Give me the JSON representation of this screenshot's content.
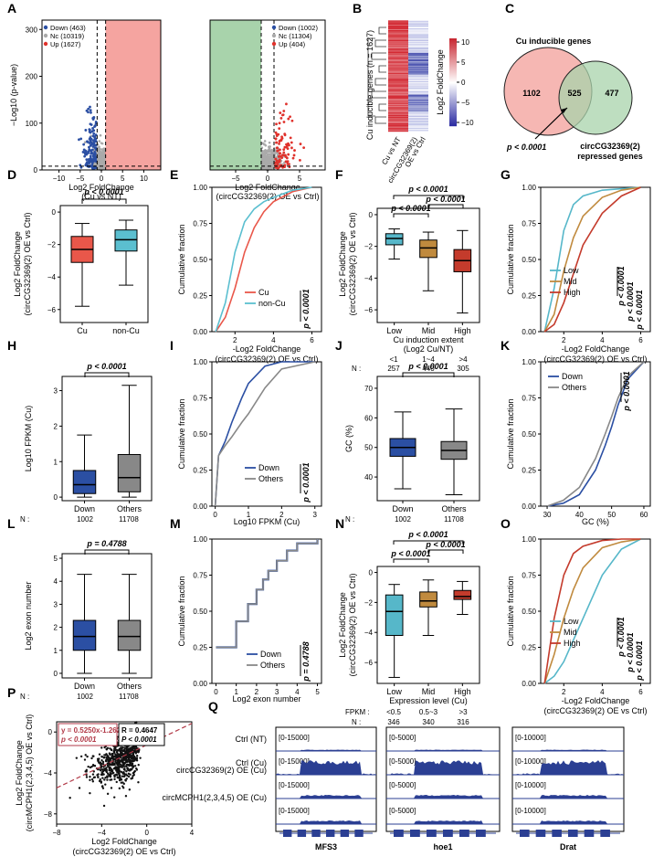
{
  "colors": {
    "up": "#e0322c",
    "down": "#2b4fa3",
    "nc": "#aaaaaa",
    "cu": "#e9574a",
    "noncu": "#5bbfd0",
    "low": "#56b7c9",
    "mid": "#c08a3e",
    "high": "#c43b2c",
    "others": "#888888",
    "pink": "#f5a4a0",
    "green": "#a8d3ab"
  },
  "panel_letters": [
    "A",
    "B",
    "C",
    "D",
    "E",
    "F",
    "G",
    "H",
    "I",
    "J",
    "K",
    "L",
    "M",
    "N",
    "O",
    "P",
    "Q"
  ],
  "A": {
    "ylabel": "−Log10 (p-value)",
    "left": {
      "legend": [
        "Down (463)",
        "Nc (10319)",
        "Up (1627)"
      ],
      "xlabel": [
        "Log2 FoldChange",
        "(Cu vs NT)"
      ],
      "xticks": [
        "−10",
        "−5",
        "0",
        "5",
        "10"
      ],
      "yticks": [
        "0",
        "100",
        "200",
        "300"
      ]
    },
    "right": {
      "legend": [
        "Down (1002)",
        "Nc (11304)",
        "Up (404)"
      ],
      "xlabel": [
        "Log2 FoldChange",
        "(circCG32369(2) OE vs Ctrl)"
      ],
      "xticks": [
        "−5",
        "0",
        "5"
      ]
    }
  },
  "B": {
    "ylabel": "Cu inducible genes (n = 1627)",
    "cols": [
      "Cu vs NT",
      "circCG32369(2)",
      "OE vs Ctrl"
    ],
    "cbar_label": "Log2 FoldChange",
    "cbar_ticks": [
      "10",
      "5",
      "0",
      "−5",
      "−10"
    ]
  },
  "C": {
    "title": "Cu inducible genes",
    "left": "1102",
    "mid": "525",
    "right": "477",
    "label2": [
      "circCG32369(2)",
      "repressed genes"
    ],
    "p": "p < 0.0001"
  },
  "D": {
    "ylabel": [
      "Log2 FoldChange",
      "(circCG32369(2) OE vs Ctrl)"
    ],
    "p": "p < 0.0001",
    "cats": [
      "Cu",
      "non-Cu"
    ],
    "yticks": [
      "0",
      "−2",
      "−4",
      "−6"
    ]
  },
  "E": {
    "ylabel": "Cumulative fraction",
    "legend": [
      "Cu",
      "non-Cu"
    ],
    "p": "p < 0.0001",
    "xlabel": [
      "-Log2 FoldChange",
      "(circCG32369(2) OE vs Ctrl)"
    ],
    "xticks": [
      "2",
      "4",
      "6"
    ],
    "yticks": [
      "0.00",
      "0.25",
      "0.50",
      "0.75",
      "1.00"
    ]
  },
  "F": {
    "ylabel": [
      "Log2 FoldChange",
      "(circCG32369(2) OE vs Ctrl)"
    ],
    "p": [
      "p < 0.0001",
      "p < 0.0001",
      "p < 0.0001"
    ],
    "cats": [
      "Low",
      "Mid",
      "High"
    ],
    "xlabel": [
      "Cu induction extent",
      "(Log2 Cu/NT)"
    ],
    "ranges": [
      "<1",
      "1~4",
      ">4"
    ],
    "n_label": "N :",
    "n": [
      "257",
      "440",
      "305"
    ],
    "yticks": [
      "0",
      "−2",
      "−4",
      "−6"
    ]
  },
  "G": {
    "ylabel": "Cumulative fraction",
    "legend": [
      "Low",
      "Mid",
      "High"
    ],
    "p": [
      "p < 0.0001",
      "p < 0.0001",
      "p < 0.0001"
    ],
    "xlabel": [
      "-Log2 FoldChange",
      "(circCG32369(2) OE vs Ctrl)"
    ],
    "xticks": [
      "2",
      "4",
      "6"
    ],
    "yticks": [
      "0.00",
      "0.25",
      "0.50",
      "0.75",
      "1.00"
    ]
  },
  "H": {
    "ylabel": "Log10 FPKM (Cu)",
    "p": "p < 0.0001",
    "cats": [
      "Down",
      "Others"
    ],
    "n_label": "N :",
    "n": [
      "1002",
      "11708"
    ],
    "yticks": [
      "0",
      "1",
      "2",
      "3"
    ]
  },
  "I": {
    "ylabel": "Cumulative fraction",
    "legend": [
      "Down",
      "Others"
    ],
    "p": "p < 0.0001",
    "xlabel": "Log10 FPKM (Cu)",
    "xticks": [
      "0",
      "1",
      "2",
      "3"
    ],
    "yticks": [
      "0.00",
      "0.25",
      "0.50",
      "0.75",
      "1.00"
    ]
  },
  "J": {
    "ylabel": "GC (%)",
    "p": "p < 0.0001",
    "cats": [
      "Down",
      "Others"
    ],
    "n_label": "N :",
    "n": [
      "1002",
      "11708"
    ],
    "yticks": [
      "40",
      "50",
      "60",
      "70"
    ]
  },
  "K": {
    "ylabel": "Cumulative fraction",
    "legend": [
      "Down",
      "Others"
    ],
    "p": "p < 0.0001",
    "xlabel": "GC (%)",
    "xticks": [
      "30",
      "40",
      "50",
      "60"
    ],
    "yticks": [
      "0.00",
      "0.25",
      "0.50",
      "0.75",
      "1.00"
    ]
  },
  "L": {
    "ylabel": "Log2 exon number",
    "p": "p = 0.4788",
    "cats": [
      "Down",
      "Others"
    ],
    "n_label": "N :",
    "n": [
      "1002",
      "11708"
    ],
    "yticks": [
      "0",
      "1",
      "2",
      "3",
      "4",
      "5"
    ]
  },
  "M": {
    "ylabel": "Cumulative fraction",
    "legend": [
      "Down",
      "Others"
    ],
    "p": "p = 0.4788",
    "xlabel": "Log2 exon number",
    "xticks": [
      "0",
      "1",
      "2",
      "3",
      "4",
      "5"
    ],
    "yticks": [
      "0.00",
      "0.25",
      "0.50",
      "0.75",
      "1.00"
    ]
  },
  "N": {
    "ylabel": [
      "Log2 FoldChange",
      "(circCG32369(2) OE vs Ctrl)"
    ],
    "p": [
      "p < 0.0001",
      "p < 0.0001",
      "p < 0.0001"
    ],
    "cats": [
      "Low",
      "Mid",
      "High"
    ],
    "xlabel": "Expression level (Cu)",
    "fpkm_label": "FPKM :",
    "ranges": [
      "<0.5",
      "0.5~3",
      ">3"
    ],
    "n_label": "N :",
    "n": [
      "346",
      "340",
      "316"
    ],
    "yticks": [
      "0",
      "−2",
      "−4",
      "−6"
    ]
  },
  "O": {
    "ylabel": "Cumulative fraction",
    "legend": [
      "Low",
      "Mid",
      "High"
    ],
    "p": [
      "p < 0.0001",
      "p < 0.0001",
      "p < 0.0001"
    ],
    "xlabel": [
      "-Log2 FoldChange",
      "(circCG32369(2) OE vs Ctrl)"
    ],
    "xticks": [
      "2",
      "4",
      "6"
    ],
    "yticks": [
      "0.00",
      "0.25",
      "0.50",
      "0.75",
      "1.00"
    ]
  },
  "P": {
    "ylabel": [
      "Log2 FoldChange",
      "(circMCPH1(2,3,4,5) OE vs Ctrl)"
    ],
    "eq": "y = 0.5250x-1.262",
    "eqp": "p < 0.0001",
    "r": "R = 0.4647",
    "rp": "P < 0.0001",
    "xlabel": [
      "Log2 FoldChange",
      "(circCG32369(2) OE vs Ctrl)"
    ],
    "xticks": [
      "−8",
      "−4",
      "0",
      "4"
    ],
    "yticks": [
      "0",
      "−4",
      "−8"
    ]
  },
  "Q": {
    "tracks": [
      "Ctrl (NT)",
      "Ctrl (Cu)",
      "circCG32369(2) OE (Cu)",
      "circMCPH1(2,3,4,5) OE (Cu)"
    ],
    "genes": [
      {
        "name": "MFS3",
        "range": "[0-15000]"
      },
      {
        "name": "hoe1",
        "range": "[0-5000]"
      },
      {
        "name": "Drat",
        "range": "[0-10000]"
      }
    ]
  },
  "chart_data": [
    {
      "type": "scatter",
      "panel": "A-left",
      "title": "",
      "xlabel": "Log2 FoldChange (Cu vs NT)",
      "ylabel": "−Log10 (p-value)",
      "xlim": [
        -14,
        14
      ],
      "ylim": [
        0,
        320
      ],
      "series": [
        {
          "name": "Down (463)"
        },
        {
          "name": "Nc (10319)"
        },
        {
          "name": "Up (1627)"
        }
      ]
    },
    {
      "type": "scatter",
      "panel": "A-right",
      "xlabel": "Log2 FoldChange (circCG32369(2) OE vs Ctrl)",
      "xlim": [
        -9,
        9
      ],
      "ylim": [
        0,
        320
      ],
      "series": [
        {
          "name": "Down (1002)"
        },
        {
          "name": "Nc (11304)"
        },
        {
          "name": "Up (404)"
        }
      ]
    },
    {
      "type": "heatmap",
      "panel": "B",
      "rows": 1627,
      "columns": [
        "Cu vs NT",
        "circCG32369(2) OE vs Ctrl"
      ],
      "color_range": [
        -10,
        10
      ]
    },
    {
      "type": "venn",
      "panel": "C",
      "sets": [
        "Cu inducible genes",
        "circCG32369(2) repressed genes"
      ],
      "values": {
        "only_a": 1102,
        "both": 525,
        "only_b": 477
      }
    },
    {
      "type": "box",
      "panel": "D",
      "categories": [
        "Cu",
        "non-Cu"
      ],
      "median": [
        -2.3,
        -1.7
      ],
      "q1": [
        -3.1,
        -2.4
      ],
      "q3": [
        -1.5,
        -1.1
      ],
      "whisker_low": [
        -5.8,
        -4.5
      ],
      "whisker_high": [
        -0.7,
        -0.5
      ]
    },
    {
      "type": "line",
      "panel": "E",
      "xlim": [
        0.8,
        6.5
      ],
      "ylim": [
        0,
        1
      ],
      "series": [
        {
          "name": "Cu",
          "x": [
            1,
            1.5,
            2,
            2.5,
            3,
            3.5,
            4,
            5,
            6
          ],
          "y": [
            0,
            0.1,
            0.3,
            0.55,
            0.72,
            0.83,
            0.9,
            0.97,
            1
          ]
        },
        {
          "name": "non-Cu",
          "x": [
            1,
            1.5,
            2,
            2.5,
            3,
            3.5,
            4,
            5,
            6
          ],
          "y": [
            0,
            0.2,
            0.55,
            0.76,
            0.85,
            0.9,
            0.93,
            0.98,
            1
          ]
        }
      ]
    },
    {
      "type": "box",
      "panel": "F",
      "categories": [
        "Low",
        "Mid",
        "High"
      ],
      "median": [
        -1.5,
        -2.1,
        -2.9
      ],
      "q1": [
        -1.9,
        -2.7,
        -3.6
      ],
      "q3": [
        -1.2,
        -1.6,
        -2.2
      ],
      "whisker_low": [
        -2.8,
        -4.8,
        -6.2
      ],
      "whisker_high": [
        -0.9,
        -1.1,
        -1.0
      ]
    },
    {
      "type": "line",
      "panel": "G",
      "xlim": [
        0.8,
        6.5
      ],
      "ylim": [
        0,
        1
      ],
      "series": [
        {
          "name": "Low",
          "x": [
            1,
            1.5,
            2,
            2.5,
            3,
            4,
            5,
            6
          ],
          "y": [
            0,
            0.3,
            0.7,
            0.88,
            0.94,
            0.98,
            0.99,
            1
          ]
        },
        {
          "name": "Mid",
          "x": [
            1,
            1.5,
            2,
            2.5,
            3,
            4,
            5,
            6
          ],
          "y": [
            0,
            0.12,
            0.42,
            0.65,
            0.8,
            0.93,
            0.98,
            1
          ]
        },
        {
          "name": "High",
          "x": [
            1,
            1.5,
            2,
            2.5,
            3,
            4,
            5,
            6
          ],
          "y": [
            0,
            0.05,
            0.2,
            0.4,
            0.6,
            0.82,
            0.94,
            1
          ]
        }
      ]
    },
    {
      "type": "box",
      "panel": "H",
      "categories": [
        "Down",
        "Others"
      ],
      "median": [
        0.35,
        0.55
      ],
      "q1": [
        0.1,
        0.15
      ],
      "q3": [
        0.75,
        1.2
      ],
      "whisker_low": [
        0,
        0
      ],
      "whisker_high": [
        1.75,
        3.15
      ]
    },
    {
      "type": "line",
      "panel": "I",
      "xlim": [
        -0.1,
        3.2
      ],
      "ylim": [
        0,
        1
      ],
      "series": [
        {
          "name": "Down",
          "x": [
            0,
            0.1,
            0.3,
            0.5,
            0.8,
            1,
            1.5,
            2,
            3
          ],
          "y": [
            0,
            0.35,
            0.45,
            0.58,
            0.75,
            0.85,
            0.97,
            1,
            1
          ]
        },
        {
          "name": "Others",
          "x": [
            0,
            0.1,
            0.3,
            0.5,
            0.8,
            1,
            1.5,
            2,
            3
          ],
          "y": [
            0,
            0.35,
            0.42,
            0.48,
            0.58,
            0.64,
            0.82,
            0.95,
            1
          ]
        }
      ]
    },
    {
      "type": "box",
      "panel": "J",
      "categories": [
        "Down",
        "Others"
      ],
      "median": [
        50,
        49
      ],
      "q1": [
        47,
        46
      ],
      "q3": [
        53,
        52
      ],
      "whisker_low": [
        36,
        34
      ],
      "whisker_high": [
        62,
        63
      ]
    },
    {
      "type": "line",
      "panel": "K",
      "xlim": [
        28,
        62
      ],
      "ylim": [
        0,
        1
      ],
      "series": [
        {
          "name": "Down",
          "x": [
            30,
            35,
            40,
            45,
            48,
            50,
            52,
            55,
            60
          ],
          "y": [
            0,
            0.02,
            0.08,
            0.25,
            0.42,
            0.55,
            0.7,
            0.88,
            1
          ]
        },
        {
          "name": "Others",
          "x": [
            30,
            35,
            40,
            45,
            48,
            50,
            52,
            55,
            60
          ],
          "y": [
            0,
            0.04,
            0.13,
            0.33,
            0.5,
            0.62,
            0.75,
            0.9,
            1
          ]
        }
      ]
    },
    {
      "type": "box",
      "panel": "L",
      "categories": [
        "Down",
        "Others"
      ],
      "median": [
        1.6,
        1.6
      ],
      "q1": [
        1.0,
        1.0
      ],
      "q3": [
        2.3,
        2.3
      ],
      "whisker_low": [
        0,
        0
      ],
      "whisker_high": [
        4.3,
        4.3
      ]
    },
    {
      "type": "line",
      "panel": "M",
      "xlim": [
        -0.2,
        5.2
      ],
      "ylim": [
        0,
        1
      ],
      "series": [
        {
          "name": "Down",
          "x": [
            0,
            1,
            1.58,
            2,
            2.32,
            2.58,
            3,
            3.5,
            4,
            5
          ],
          "y": [
            0.25,
            0.43,
            0.55,
            0.65,
            0.72,
            0.78,
            0.85,
            0.92,
            0.97,
            1
          ]
        },
        {
          "name": "Others",
          "x": [
            0,
            1,
            1.58,
            2,
            2.32,
            2.58,
            3,
            3.5,
            4,
            5
          ],
          "y": [
            0.25,
            0.43,
            0.55,
            0.65,
            0.72,
            0.78,
            0.85,
            0.92,
            0.97,
            1
          ]
        }
      ]
    },
    {
      "type": "box",
      "panel": "N",
      "categories": [
        "Low",
        "Mid",
        "High"
      ],
      "median": [
        -2.6,
        -1.9,
        -1.6
      ],
      "q1": [
        -4.2,
        -2.3,
        -1.8
      ],
      "q3": [
        -1.5,
        -1.3,
        -1.2
      ],
      "whisker_low": [
        -7.0,
        -4.2,
        -2.8
      ],
      "whisker_high": [
        -0.8,
        -0.5,
        -0.6
      ]
    },
    {
      "type": "line",
      "panel": "O",
      "xlim": [
        0.8,
        6.5
      ],
      "ylim": [
        0,
        1
      ],
      "series": [
        {
          "name": "Low",
          "x": [
            1,
            1.5,
            2,
            2.5,
            3,
            4,
            5,
            6
          ],
          "y": [
            0,
            0.05,
            0.15,
            0.3,
            0.45,
            0.75,
            0.93,
            1
          ]
        },
        {
          "name": "Mid",
          "x": [
            1,
            1.5,
            2,
            2.5,
            3,
            4,
            5,
            6
          ],
          "y": [
            0,
            0.2,
            0.45,
            0.65,
            0.8,
            0.94,
            0.98,
            1
          ]
        },
        {
          "name": "High",
          "x": [
            1,
            1.5,
            2,
            2.5,
            3,
            4,
            5,
            6
          ],
          "y": [
            0,
            0.45,
            0.75,
            0.9,
            0.95,
            0.99,
            1,
            1
          ]
        }
      ]
    },
    {
      "type": "scatter",
      "panel": "P",
      "xlim": [
        -8,
        4
      ],
      "ylim": [
        -9,
        1
      ],
      "fit": {
        "slope": 0.525,
        "intercept": -1.262
      },
      "r": 0.4647
    }
  ]
}
